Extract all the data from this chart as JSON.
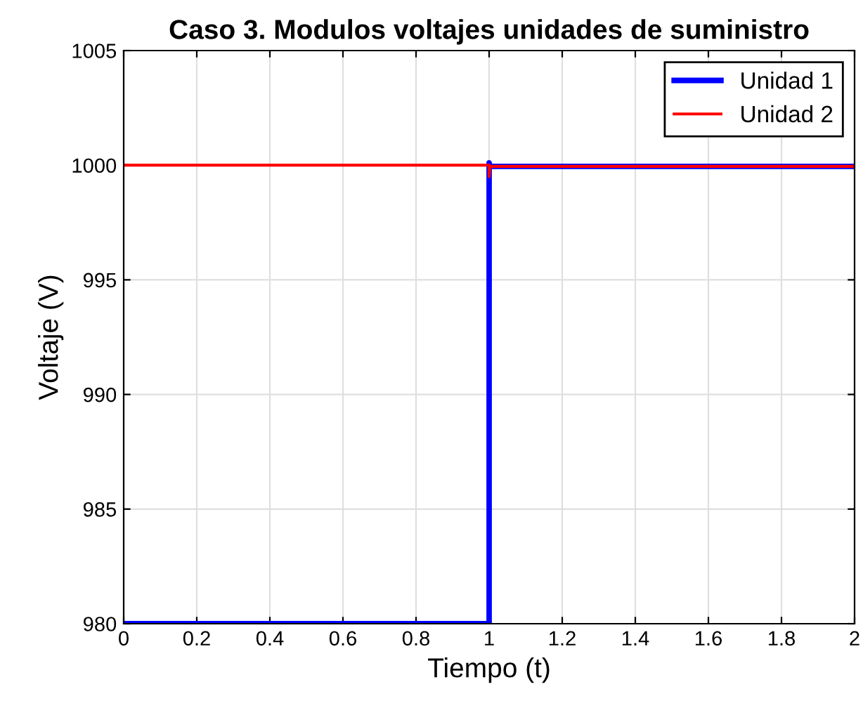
{
  "chart_data": {
    "type": "line",
    "title": "Caso 3. Modulos voltajes unidades de suministro",
    "xlabel": "Tiempo (t)",
    "ylabel": "Voltaje (V)",
    "series": [
      {
        "name": "Unidad 1",
        "color": "#0000ff",
        "x": [
          0,
          1,
          1,
          1.002,
          2
        ],
        "values": [
          980,
          980,
          1000.1,
          999.95,
          999.95
        ]
      },
      {
        "name": "Unidad 2",
        "color": "#ff0000",
        "x": [
          0,
          1,
          1,
          1.002,
          2
        ],
        "values": [
          1000,
          1000,
          999.5,
          999.95,
          999.95
        ]
      }
    ],
    "xlim": [
      0,
      2
    ],
    "xticks": [
      0,
      0.2,
      0.4,
      0.6,
      0.8,
      1,
      1.2,
      1.4,
      1.6,
      1.8,
      2
    ],
    "ylim": [
      980,
      1005
    ],
    "yticks": [
      980,
      985,
      990,
      995,
      1000,
      1005
    ],
    "grid": true,
    "legend": "top right",
    "marker": "none",
    "line_style": "solid"
  }
}
